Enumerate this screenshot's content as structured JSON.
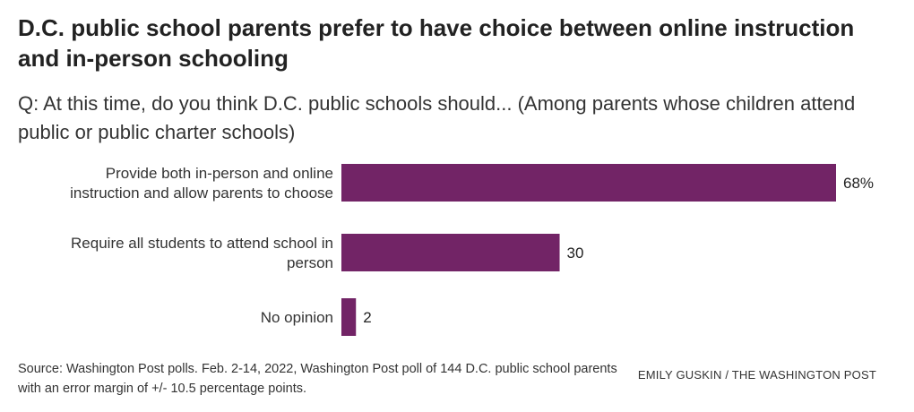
{
  "chart_data": {
    "type": "bar",
    "orientation": "horizontal",
    "title": "D.C. public school parents prefer to have choice between online instruction and in-person schooling",
    "subtitle": "Q: At this time, do you think D.C. public schools should... (Among parents whose children attend public or public charter schools)",
    "categories": [
      [
        "Provide both in-person and online",
        "instruction and allow parents to choose"
      ],
      [
        "Require all students to attend school in",
        "person"
      ],
      [
        "No opinion"
      ]
    ],
    "values": [
      68,
      30,
      2
    ],
    "value_labels": [
      "68%",
      "30",
      "2"
    ],
    "bar_color": "#722466",
    "xlim": [
      0,
      68
    ],
    "grid": false,
    "legend": false
  },
  "footer": {
    "source": "Source: Washington Post polls. Feb. 2-14, 2022, Washington Post poll of 144 D.C. public school parents with an error margin of +/- 10.5 percentage points.",
    "credit": "EMILY GUSKIN / THE WASHINGTON POST"
  }
}
